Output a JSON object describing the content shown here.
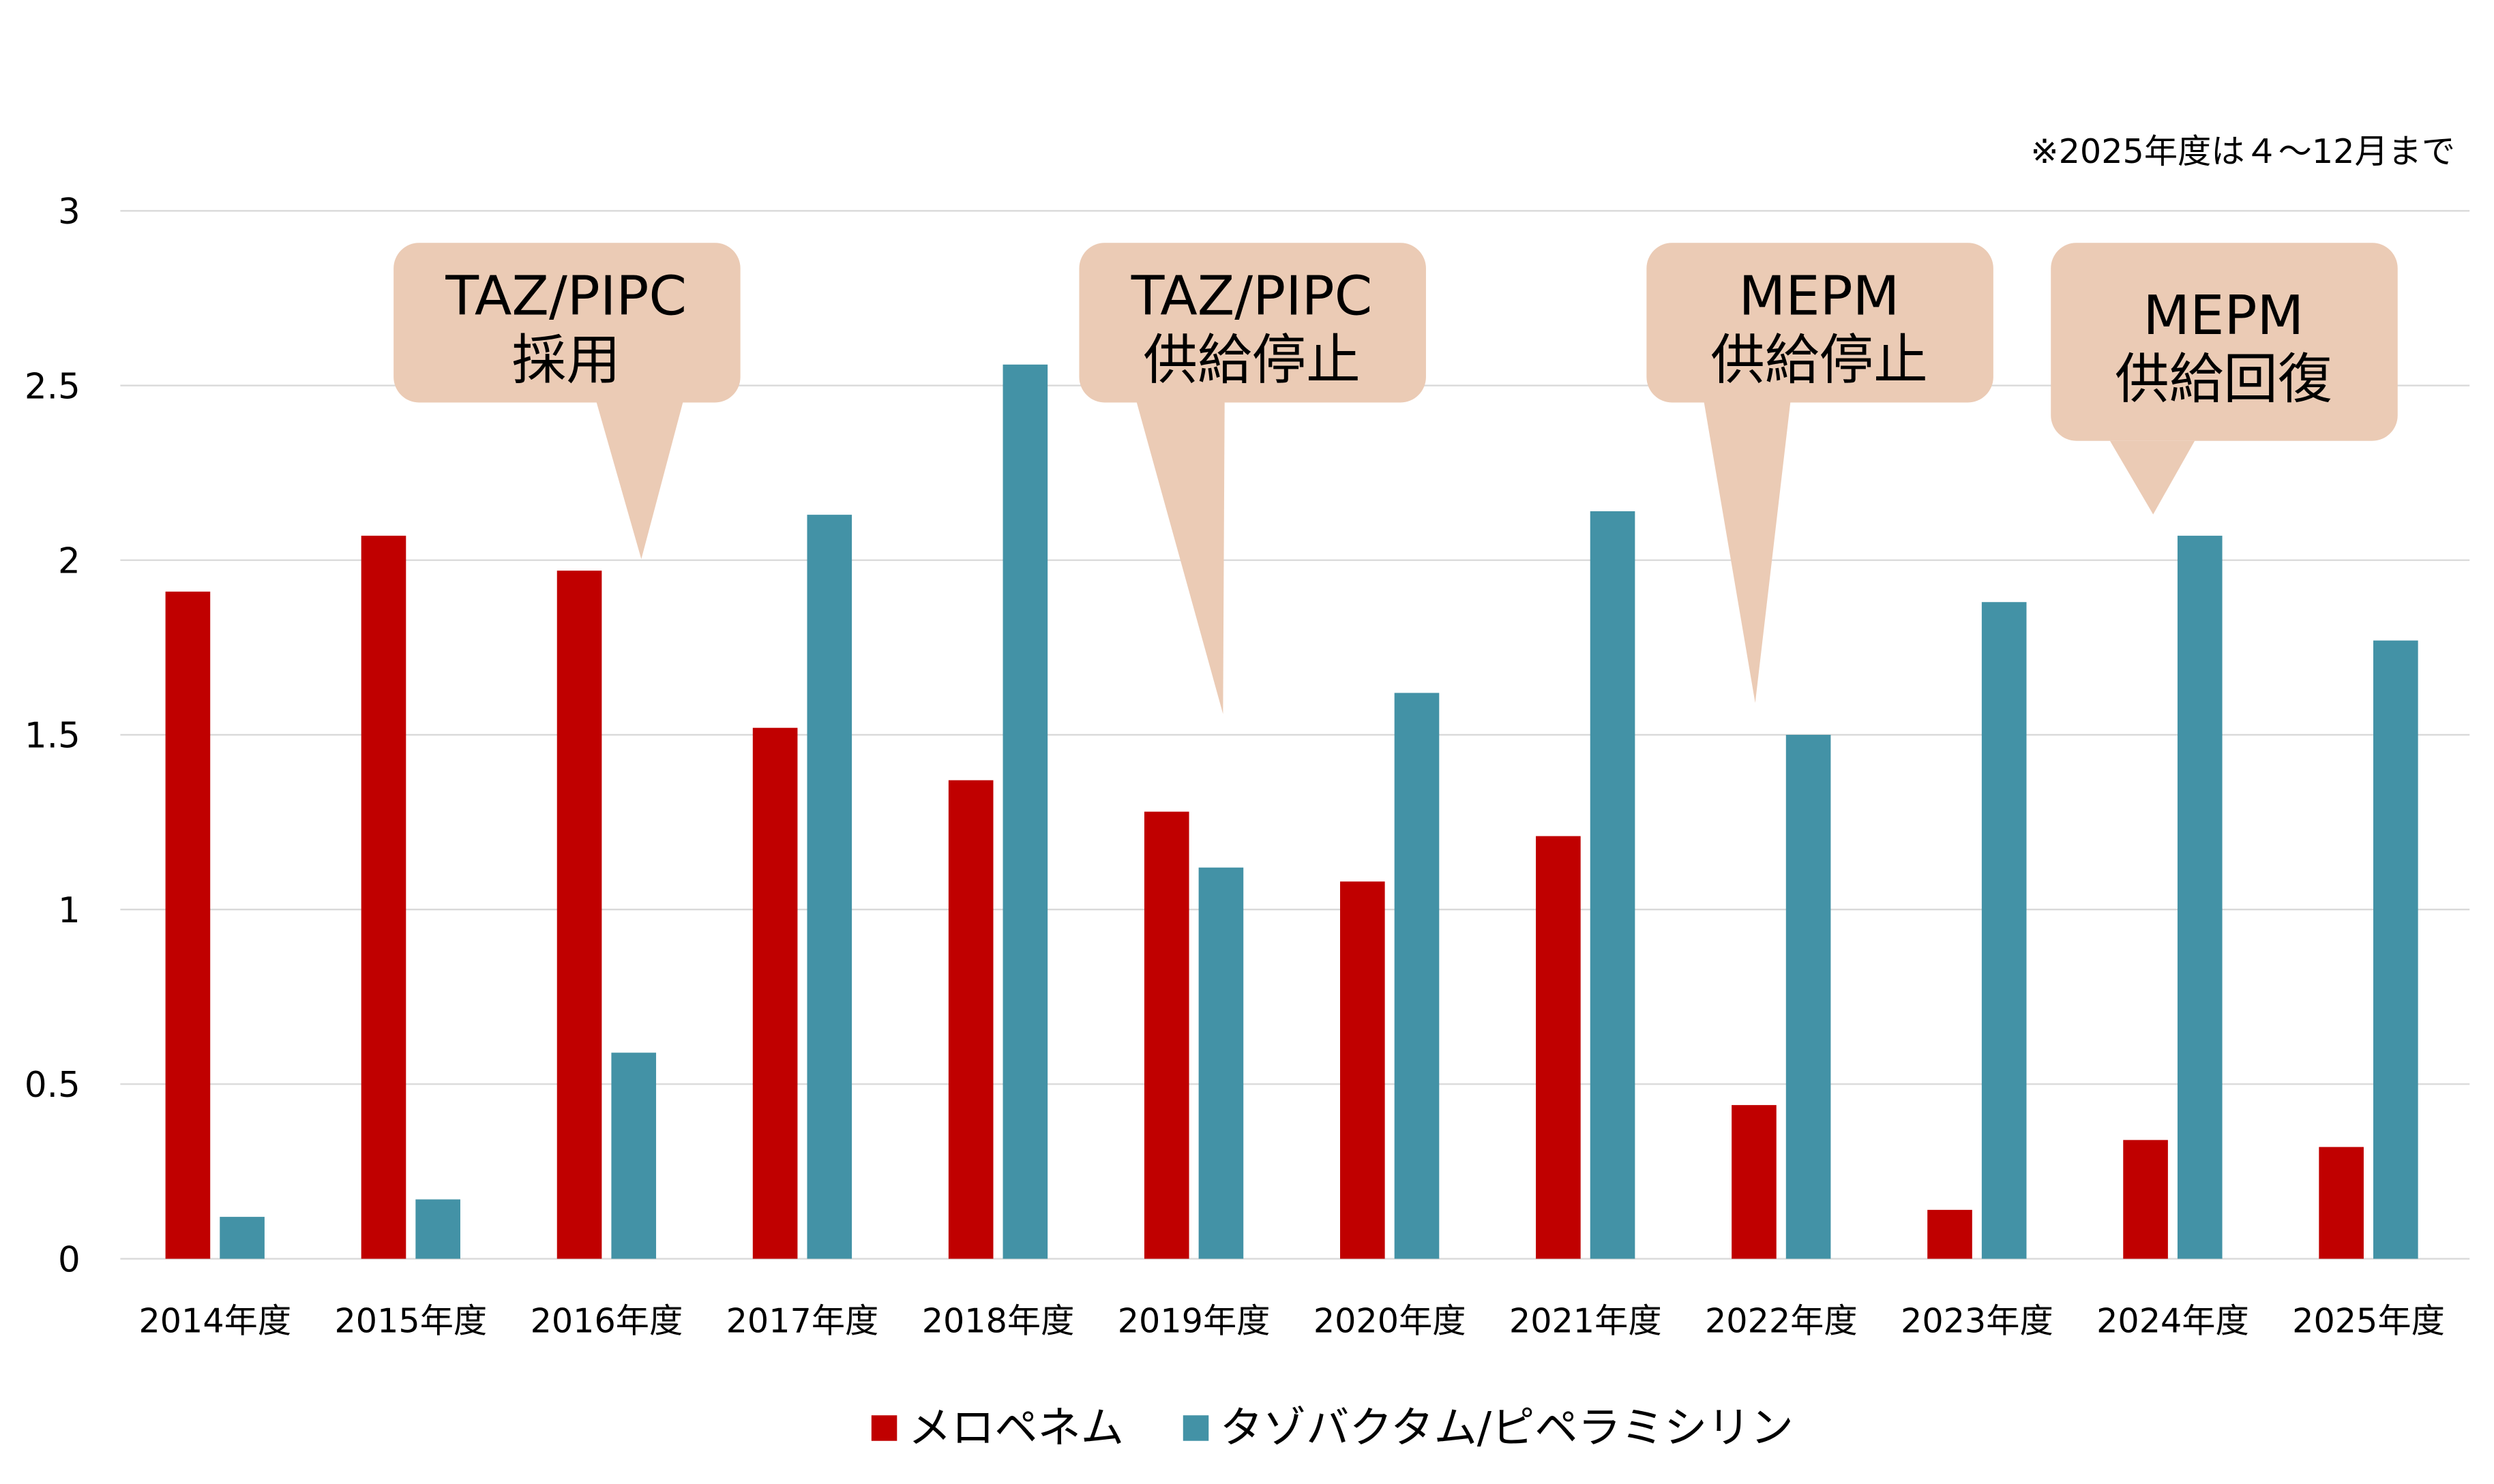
{
  "chart_data": {
    "type": "bar",
    "title": "",
    "note": "※2025年度は４～12月まで",
    "xlabel": "",
    "ylabel": "",
    "ylim": [
      0,
      3
    ],
    "yticks": [
      "0",
      "0.5",
      "1",
      "1.5",
      "2",
      "2.5",
      "3"
    ],
    "grid": true,
    "legend_position": "bottom",
    "categories": [
      "2014年度",
      "2015年度",
      "2016年度",
      "2017年度",
      "2018年度",
      "2019年度",
      "2020年度",
      "2021年度",
      "2022年度",
      "2023年度",
      "2024年度",
      "2025年度"
    ],
    "series": [
      {
        "name": "メロペネム",
        "color": "#C00000",
        "values": [
          1.91,
          2.07,
          1.97,
          1.52,
          1.37,
          1.28,
          1.08,
          1.21,
          0.44,
          0.14,
          0.34,
          0.32
        ]
      },
      {
        "name": "タゾバクタム/ピペラミシリン",
        "color": "#4392A6",
        "values": [
          0.12,
          0.17,
          0.59,
          2.13,
          2.56,
          1.12,
          1.62,
          2.14,
          1.5,
          1.88,
          2.07,
          1.77
        ]
      }
    ],
    "annotations": [
      {
        "lines": [
          "TAZ/PIPC",
          "採用"
        ],
        "points_to": "2016年度"
      },
      {
        "lines": [
          "TAZ/PIPC",
          "供給停止"
        ],
        "points_to": "2019年度"
      },
      {
        "lines": [
          "MEPM",
          "供給停止"
        ],
        "points_to": "2022年度"
      },
      {
        "lines": [
          "MEPM",
          "供給回復"
        ],
        "points_to": "2024年度"
      }
    ],
    "annotation_color": "#EBCBB5"
  }
}
